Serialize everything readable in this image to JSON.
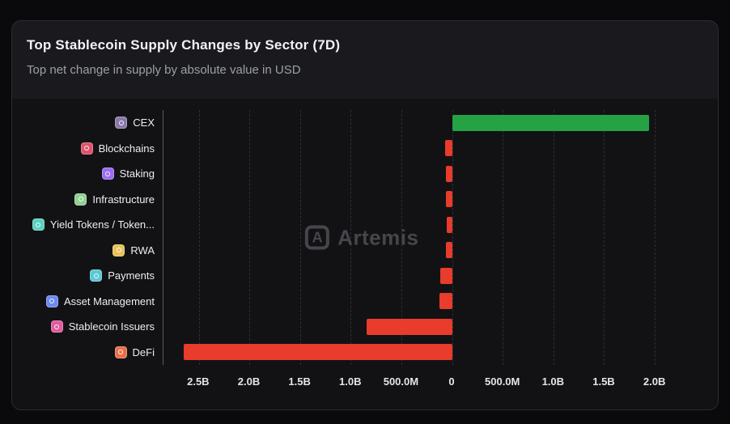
{
  "card": {
    "title": "Top Stablecoin Supply Changes by Sector (7D)",
    "subtitle": "Top net change in supply by absolute value in USD"
  },
  "watermark": {
    "logo_glyph": "A",
    "text": "Artemis"
  },
  "chart_data": {
    "type": "bar",
    "orientation": "horizontal",
    "value_unit": "USD (millions)",
    "title": "Top Stablecoin Supply Changes by Sector (7D)",
    "xlim_m": [
      -2850,
      2450
    ],
    "x_ticks": [
      "2.5B",
      "2.0B",
      "1.5B",
      "1.0B",
      "500.0M",
      "0",
      "500.0M",
      "1.0B",
      "1.5B",
      "2.0B"
    ],
    "x_tick_values_m": [
      -2500,
      -2000,
      -1500,
      -1000,
      -500,
      0,
      500,
      1000,
      1500,
      2000
    ],
    "positive_color": "#25a244",
    "negative_color": "#e83c2d",
    "grid": "vertical-dashed",
    "rows": [
      {
        "label": "CEX",
        "value_m": 1950,
        "icon_name": "cex-icon",
        "icon_color": "#8a79a8"
      },
      {
        "label": "Blockchains",
        "value_m": -65,
        "icon_name": "blockchains-icon",
        "icon_color": "#e0526b"
      },
      {
        "label": "Staking",
        "value_m": -60,
        "icon_name": "staking-icon",
        "icon_color": "#9a6df2"
      },
      {
        "label": "Infrastructure",
        "value_m": -60,
        "icon_name": "infrastructure-icon",
        "icon_color": "#8fd193"
      },
      {
        "label": "Yield Tokens / Token...",
        "value_m": -55,
        "icon_name": "yield-tokens-icon",
        "icon_color": "#5ad1c0"
      },
      {
        "label": "RWA",
        "value_m": -60,
        "icon_name": "rwa-icon",
        "icon_color": "#e8c25a"
      },
      {
        "label": "Payments",
        "value_m": -115,
        "icon_name": "payments-icon",
        "icon_color": "#5bc8d6"
      },
      {
        "label": "Asset Management",
        "value_m": -125,
        "icon_name": "asset-management-icon",
        "icon_color": "#6b8af0"
      },
      {
        "label": "Stablecoin Issuers",
        "value_m": -840,
        "icon_name": "stablecoin-issuers-icon",
        "icon_color": "#e25aa0"
      },
      {
        "label": "DeFi",
        "value_m": -2650,
        "icon_name": "defi-icon",
        "icon_color": "#e8704a"
      }
    ]
  }
}
